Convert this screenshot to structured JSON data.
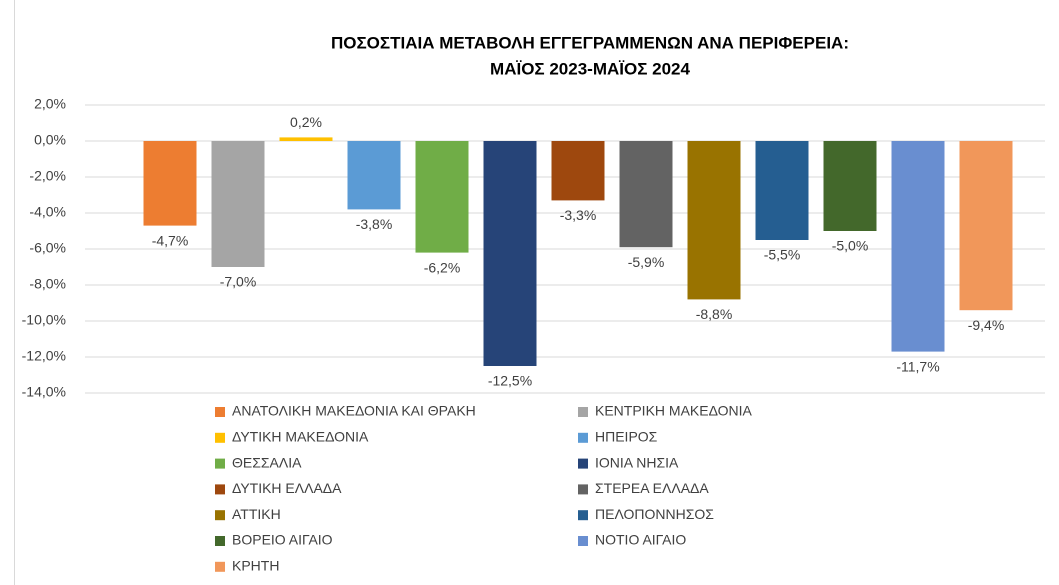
{
  "chart_data": {
    "type": "bar",
    "title": [
      "ΠΟΣΟΣΤΙΑΙΑ ΜΕΤΑΒΟΛΗ ΕΓΓΕΓΡΑΜΜΕΝΩΝ ΑΝΑ ΠΕΡΙΦΕΡΕΙΑ:",
      "ΜΑΪΟΣ 2023-ΜΑΪΟΣ 2024"
    ],
    "series": [
      {
        "name": "ΑΝΑΤΟΛΙΚΗ ΜΑΚΕΔΟΝΙΑ ΚΑΙ ΘΡΑΚΗ",
        "color": "#ed7d31",
        "values": [
          -4.7
        ],
        "value_labels": [
          "-4,7%"
        ]
      },
      {
        "name": "ΚΕΝΤΡΙΚΗ ΜΑΚΕΔΟΝΙΑ",
        "color": "#a5a5a5",
        "values": [
          -7.0
        ],
        "value_labels": [
          "-7,0%"
        ]
      },
      {
        "name": "ΔΥΤΙΚΗ ΜΑΚΕΔΟΝΙΑ",
        "color": "#ffc000",
        "values": [
          0.2
        ],
        "value_labels": [
          "0,2%"
        ]
      },
      {
        "name": "ΗΠΕΙΡΟΣ",
        "color": "#5b9bd5",
        "values": [
          -3.8
        ],
        "value_labels": [
          "-3,8%"
        ]
      },
      {
        "name": "ΘΕΣΣΑΛΙΑ",
        "color": "#70ad47",
        "values": [
          -6.2
        ],
        "value_labels": [
          "-6,2%"
        ]
      },
      {
        "name": "ΙΟΝΙΑ ΝΗΣΙΑ",
        "color": "#264478",
        "values": [
          -12.5
        ],
        "value_labels": [
          "-12,5%"
        ]
      },
      {
        "name": "ΔΥΤΙΚΗ ΕΛΛΑΔΑ",
        "color": "#9e480e",
        "values": [
          -3.3
        ],
        "value_labels": [
          "-3,3%"
        ]
      },
      {
        "name": "ΣΤΕΡΕΑ ΕΛΛΑΔΑ",
        "color": "#636363",
        "values": [
          -5.9
        ],
        "value_labels": [
          "-5,9%"
        ]
      },
      {
        "name": "ΑΤΤΙΚΗ",
        "color": "#997300",
        "values": [
          -8.8
        ],
        "value_labels": [
          "-8,8%"
        ]
      },
      {
        "name": "ΠΕΛΟΠΟΝΝΗΣΟΣ",
        "color": "#255e91",
        "values": [
          -5.5
        ],
        "value_labels": [
          "-5,5%"
        ]
      },
      {
        "name": "ΒΟΡΕΙΟ ΑΙΓΑΙΟ",
        "color": "#43682b",
        "values": [
          -5.0
        ],
        "value_labels": [
          "-5,0%"
        ]
      },
      {
        "name": "ΝΟΤΙΟ ΑΙΓΑΙΟ",
        "color": "#698ed0",
        "values": [
          -11.7
        ],
        "value_labels": [
          "-11,7%"
        ]
      },
      {
        "name": "ΚΡΗΤΗ",
        "color": "#f1975a",
        "values": [
          -9.4
        ],
        "value_labels": [
          "-9,4%"
        ]
      }
    ],
    "ylim": [
      -14,
      2
    ],
    "yticks": [
      {
        "value": 2,
        "label": "2,0%"
      },
      {
        "value": 0,
        "label": "0,0%"
      },
      {
        "value": -2,
        "label": "-2,0%"
      },
      {
        "value": -4,
        "label": "-4,0%"
      },
      {
        "value": -6,
        "label": "-6,0%"
      },
      {
        "value": -8,
        "label": "-8,0%"
      },
      {
        "value": -10,
        "label": "-10,0%"
      },
      {
        "value": -12,
        "label": "-12,0%"
      },
      {
        "value": -14,
        "label": "-14,0%"
      }
    ],
    "grid": true,
    "legend": "bottom"
  }
}
